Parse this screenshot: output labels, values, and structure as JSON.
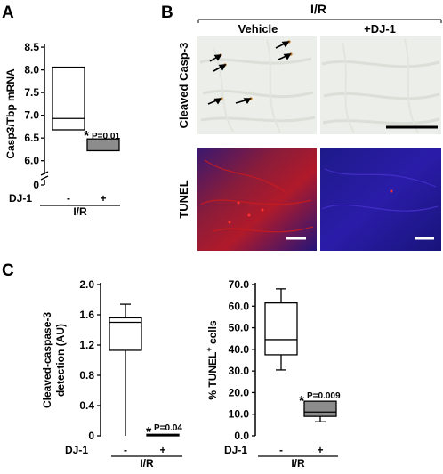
{
  "panels": {
    "a": {
      "letter": "A"
    },
    "b": {
      "letter": "B",
      "header": "I/R",
      "col_vehicle": "Vehicle",
      "col_dj1": "+DJ-1",
      "row_casp": "Cleaved Casp-3",
      "row_tunel": "TUNEL"
    },
    "c": {
      "letter": "C"
    }
  },
  "colors": {
    "treated_box": "#8c8c8c",
    "vehicle_box": "#ffffff",
    "ihc_bg": "#ebeee9",
    "tunel_red": "#d01c1c",
    "tunel_blue": "#2a1ca8",
    "arrow": "#000000",
    "casp_stain": "#c07a2a"
  },
  "chart_data": [
    {
      "id": "A",
      "type": "box",
      "ylabel": "Casp3/Tbp mRNA",
      "yticks": [
        6.0,
        6.5,
        7.0,
        7.5,
        8.0,
        8.5
      ],
      "ylim": [
        5.7,
        8.6
      ],
      "axis_break": true,
      "zero_label": "0",
      "categories": [
        "-",
        "+"
      ],
      "group_prefix": "DJ-1",
      "group_label": "I/R",
      "boxes": [
        {
          "category": "-",
          "q1": 6.68,
          "median": 6.93,
          "q3": 8.06,
          "whisker_low": 6.68,
          "whisker_high": 8.06
        },
        {
          "category": "+",
          "q1": 6.22,
          "median": 6.22,
          "q3": 6.48,
          "whisker_low": 6.22,
          "whisker_high": 6.48
        }
      ],
      "annotation": {
        "star": "*",
        "text": "P=0.01"
      }
    },
    {
      "id": "C1",
      "type": "box",
      "ylabel": "Cleaved-caspase-3 detection (AU)",
      "ylabel_lines": [
        "Cleaved-caspase-3",
        "detection (AU)"
      ],
      "yticks": [
        0,
        0.4,
        0.8,
        1.2,
        1.6,
        2.0
      ],
      "ytick_labels": [
        "0",
        "0.4",
        "0.8",
        "1.2",
        "1.6",
        "2.0"
      ],
      "ylim": [
        0,
        2.0
      ],
      "categories": [
        "-",
        "+"
      ],
      "group_prefix": "DJ-1",
      "group_label": "I/R",
      "boxes": [
        {
          "category": "-",
          "q1": 1.13,
          "median": 1.5,
          "q3": 1.56,
          "whisker_low": 0,
          "whisker_high": 1.74
        },
        {
          "category": "+",
          "q1": 0.0,
          "median": 0.01,
          "q3": 0.02,
          "whisker_low": 0,
          "whisker_high": 0.02
        }
      ],
      "annotation": {
        "star": "*",
        "text": "P=0.04"
      }
    },
    {
      "id": "C2",
      "type": "box",
      "ylabel": "% TUNEL+ cells",
      "ylabel_main": "% TUNEL",
      "ylabel_sup": "+",
      "ylabel_tail": " cells",
      "yticks": [
        0,
        10,
        20,
        30,
        40,
        50,
        60,
        70
      ],
      "ylim": [
        0,
        70
      ],
      "categories": [
        "-",
        "+"
      ],
      "group_prefix": "DJ-1",
      "group_label": "I/R",
      "boxes": [
        {
          "category": "-",
          "q1": 37.5,
          "median": 44.5,
          "q3": 61.5,
          "whisker_low": 30.5,
          "whisker_high": 68
        },
        {
          "category": "+",
          "q1": 9,
          "median": 11,
          "q3": 16,
          "whisker_low": 6.5,
          "whisker_high": 16
        }
      ],
      "annotation": {
        "star": "*",
        "text": "P=0.009"
      }
    }
  ]
}
